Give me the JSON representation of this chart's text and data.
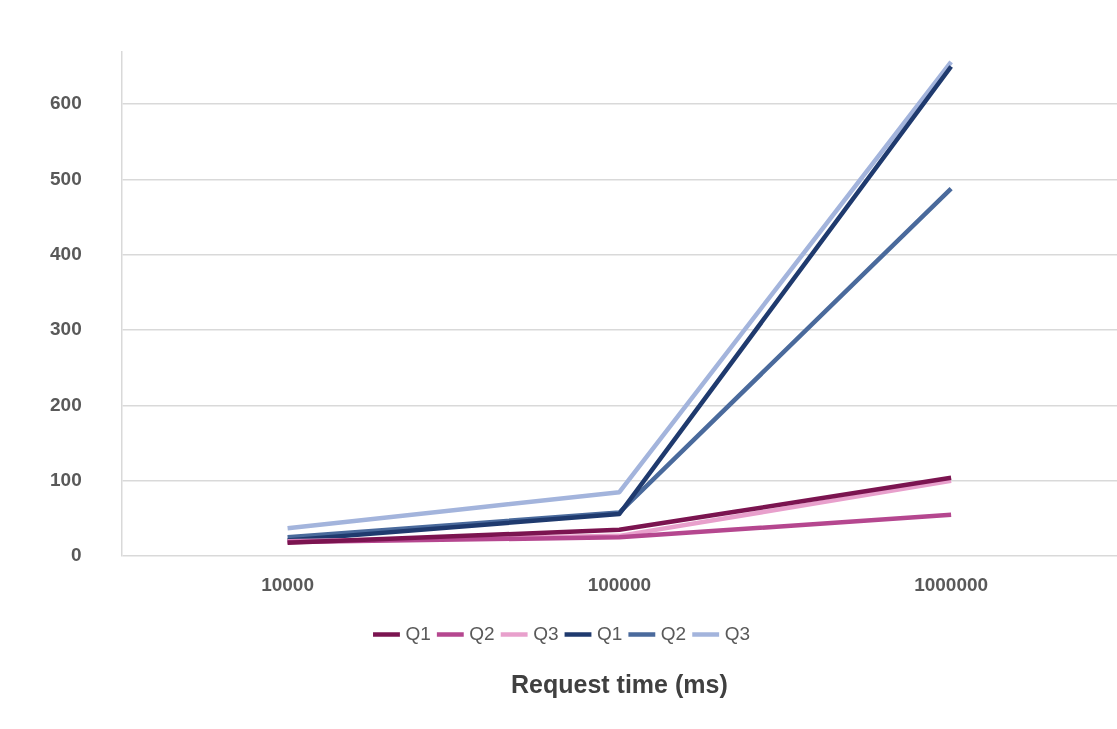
{
  "chart_data": {
    "type": "line",
    "xlabel": "Request time (ms)",
    "categories": [
      "10000",
      "100000",
      "1000000"
    ],
    "series": [
      {
        "name": "Q1",
        "color": "#7b1450",
        "values": [
          18,
          35,
          104
        ]
      },
      {
        "name": "Q2",
        "color": "#b5478f",
        "values": [
          19,
          25,
          55
        ]
      },
      {
        "name": "Q3",
        "color": "#e8a0cc",
        "values": [
          20,
          27,
          100
        ]
      },
      {
        "name": "Q1",
        "color": "#1f3a6e",
        "values": [
          21,
          56,
          650
        ]
      },
      {
        "name": "Q2",
        "color": "#4a6a9c",
        "values": [
          25,
          58,
          488
        ]
      },
      {
        "name": "Q3",
        "color": "#a3b4dc",
        "values": [
          37,
          85,
          656
        ]
      }
    ],
    "ylim": [
      0,
      670
    ],
    "yticks": [
      0,
      100,
      200,
      300,
      400,
      500,
      600
    ],
    "grid": "y",
    "legend": "bottom",
    "marker": "none",
    "line_style": "solid"
  }
}
